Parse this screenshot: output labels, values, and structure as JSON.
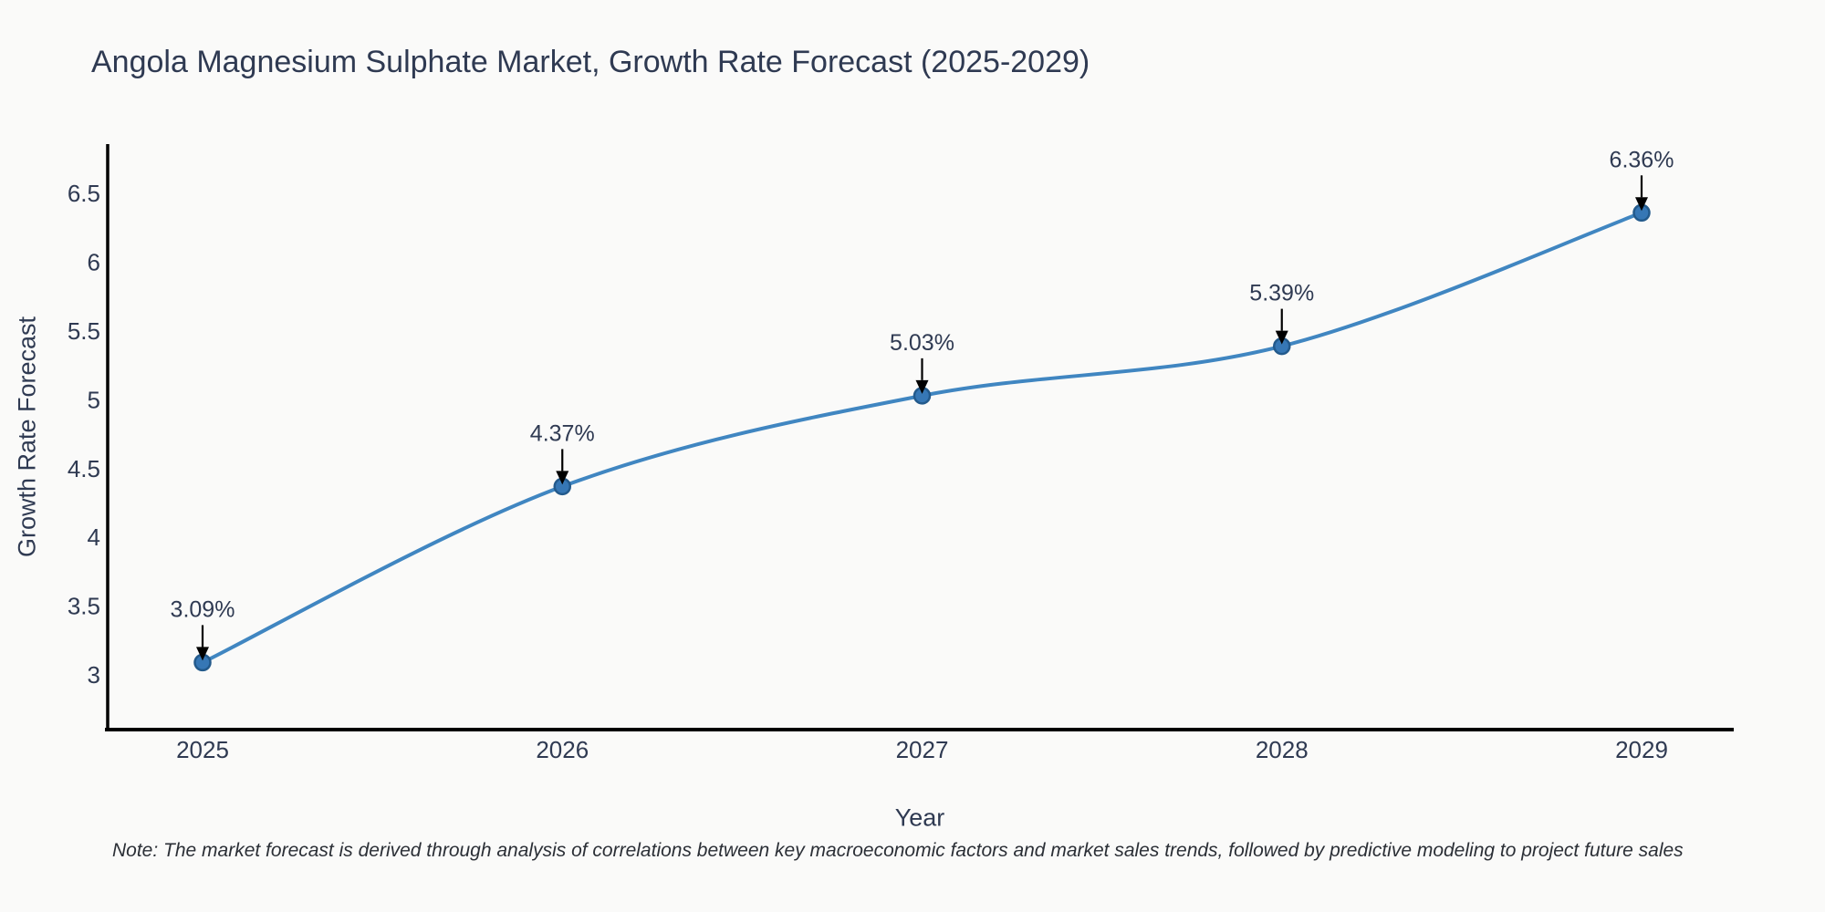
{
  "chart_data": {
    "type": "line",
    "title": "Angola Magnesium Sulphate Market, Growth Rate Forecast (2025-2029)",
    "xlabel": "Year",
    "ylabel": "Growth Rate Forecast",
    "x": [
      2025,
      2026,
      2027,
      2028,
      2029
    ],
    "x_tick_labels": [
      "2025",
      "2026",
      "2027",
      "2028",
      "2029"
    ],
    "series": [
      {
        "name": "Growth Rate Forecast",
        "values": [
          3.09,
          4.37,
          5.03,
          5.39,
          6.36
        ]
      }
    ],
    "point_labels": [
      "3.09%",
      "4.37%",
      "5.03%",
      "5.39%",
      "6.36%"
    ],
    "yticks": [
      3,
      3.5,
      4,
      4.5,
      5,
      5.5,
      6,
      6.5
    ],
    "ylim": [
      2.6,
      6.86
    ],
    "xlim": [
      2024.73,
      2029.26
    ],
    "grid": false,
    "legend": "none",
    "line_shape": "spline",
    "annotation_style": "value-label-with-down-arrow",
    "note": "Note: The market forecast is derived through analysis of correlations between key macroeconomic factors and market sales trends, followed by predictive modeling to project future sales",
    "colors": {
      "line": "#4086c1",
      "marker_fill": "#3677b5",
      "marker_edge": "#235a8c",
      "text": "#2f3a52",
      "axis": "#000000",
      "annotation_arrow": "#000000",
      "note_text": "#2b2f36",
      "background": "#fafaf9"
    }
  }
}
